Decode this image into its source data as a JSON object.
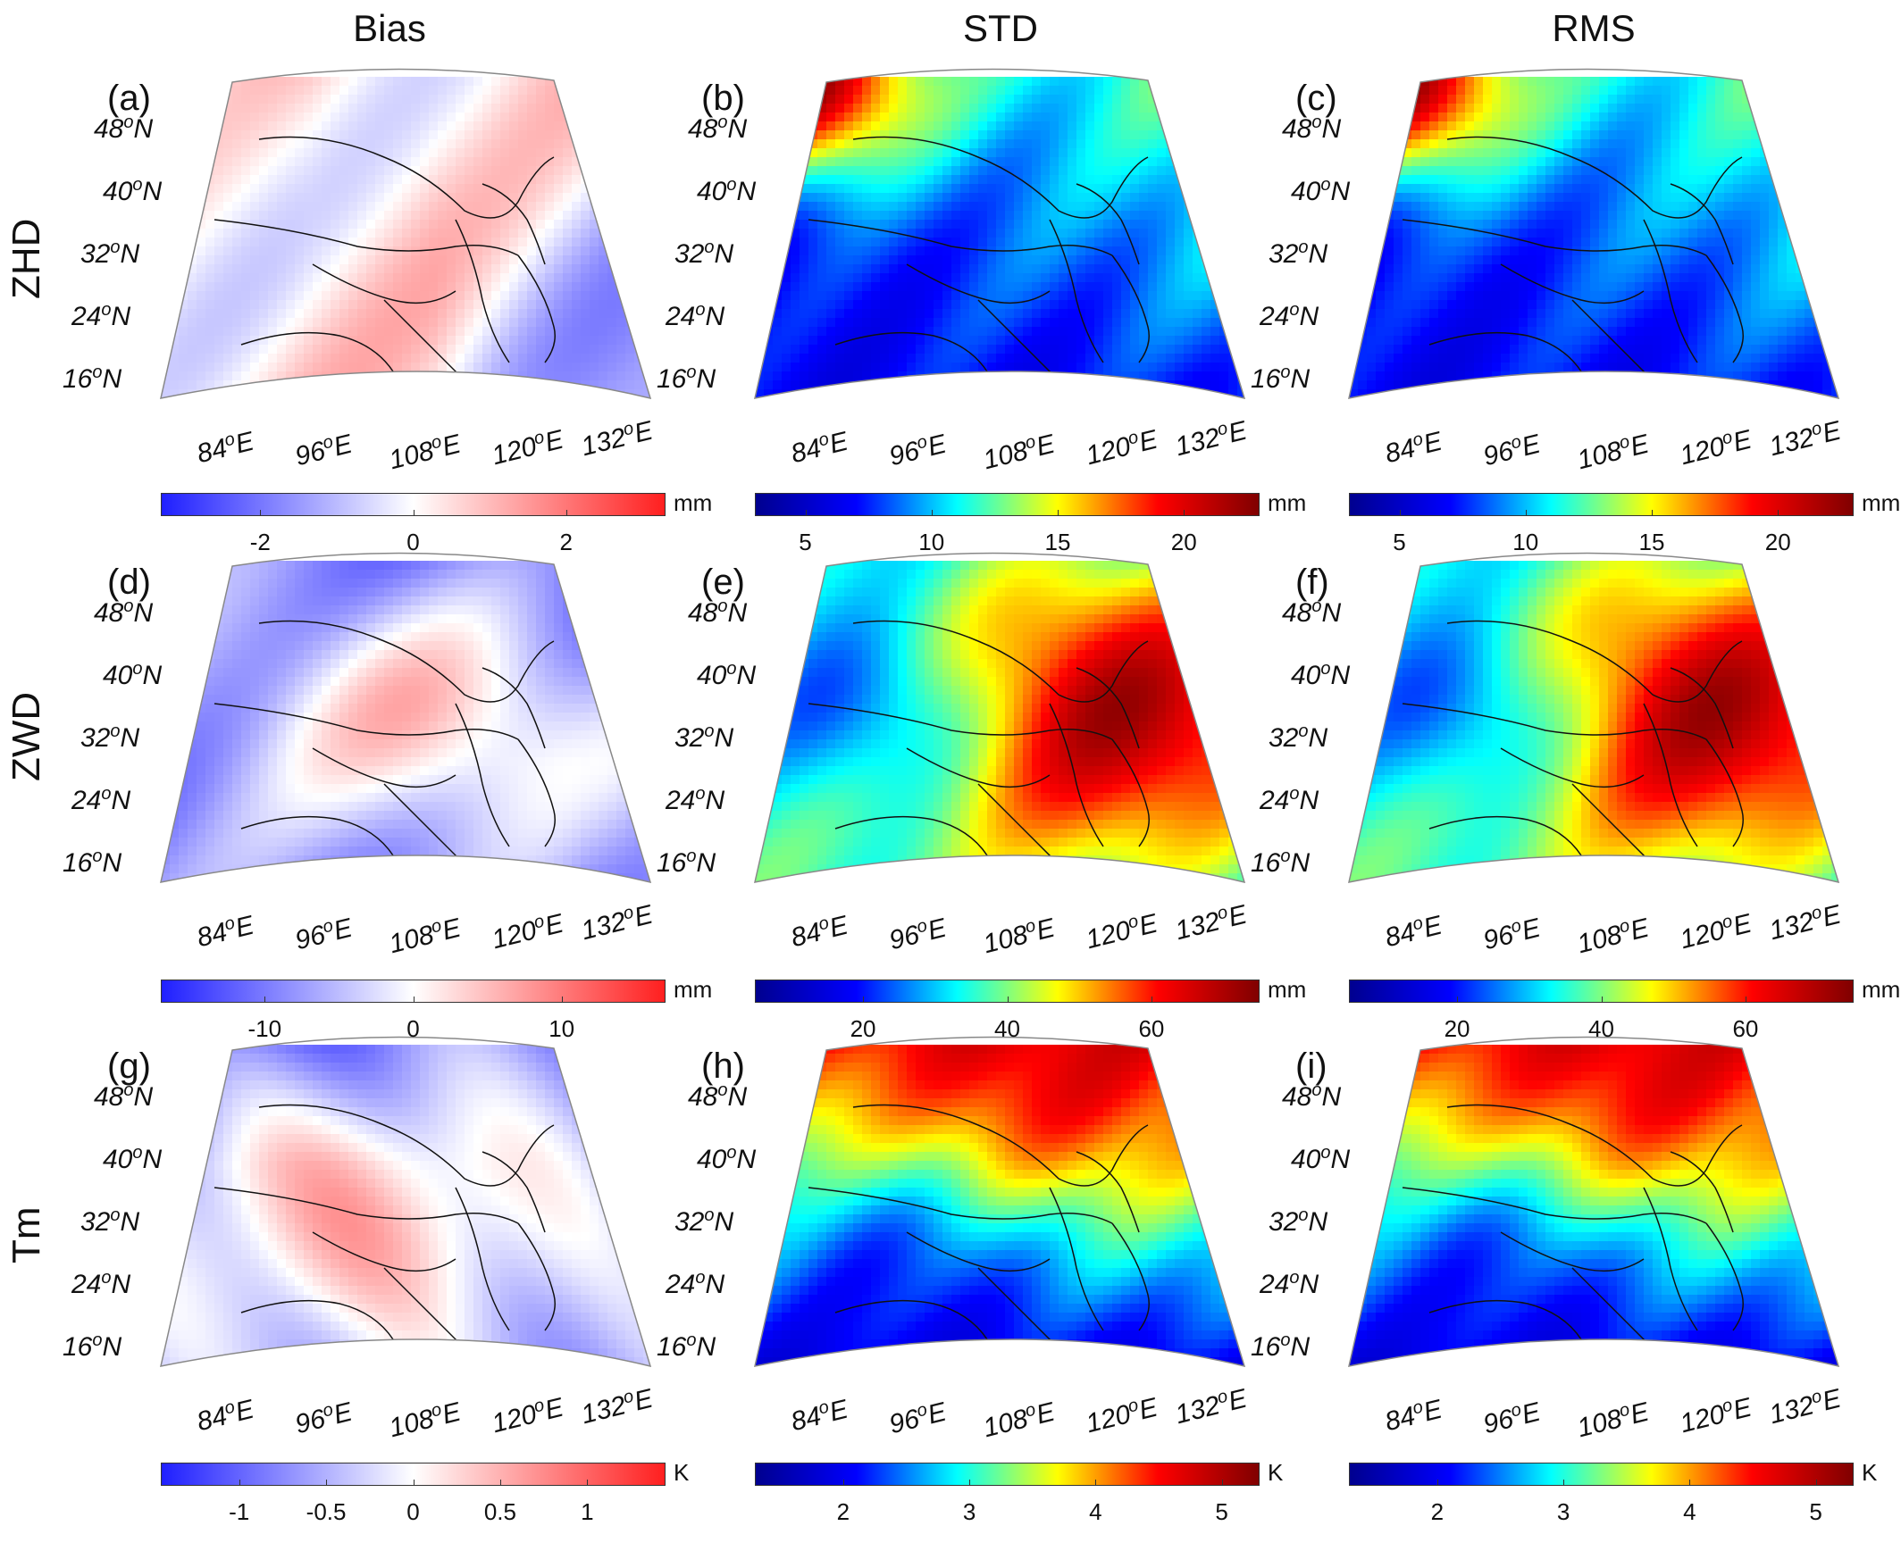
{
  "columns": [
    "Bias",
    "STD",
    "RMS"
  ],
  "rows": [
    "ZHD",
    "ZWD",
    "Tm"
  ],
  "latitude_labels": [
    "48",
    "40",
    "32",
    "24",
    "16"
  ],
  "longitude_labels": [
    "84",
    "96",
    "108",
    "120",
    "132"
  ],
  "lat_suffix": "N",
  "lon_suffix": "E",
  "degree_mark": "o",
  "panels": [
    {
      "label": "(a)",
      "row": "ZHD",
      "column": "Bias",
      "colormap": "diverging",
      "unit": "mm",
      "range": [
        -3.3,
        3.3
      ],
      "ticks": [
        "-2",
        "0",
        "2"
      ],
      "tick_values": [
        -2,
        0,
        2
      ]
    },
    {
      "label": "(b)",
      "row": "ZHD",
      "column": "STD",
      "colormap": "jet",
      "unit": "mm",
      "range": [
        3,
        23
      ],
      "ticks": [
        "5",
        "10",
        "15",
        "20"
      ],
      "tick_values": [
        5,
        10,
        15,
        20
      ]
    },
    {
      "label": "(c)",
      "row": "ZHD",
      "column": "RMS",
      "colormap": "jet",
      "unit": "mm",
      "range": [
        3,
        23
      ],
      "ticks": [
        "5",
        "10",
        "15",
        "20"
      ],
      "tick_values": [
        5,
        10,
        15,
        20
      ]
    },
    {
      "label": "(d)",
      "row": "ZWD",
      "column": "Bias",
      "colormap": "diverging",
      "unit": "mm",
      "range": [
        -17,
        17
      ],
      "ticks": [
        "-10",
        "0",
        "10"
      ],
      "tick_values": [
        -10,
        0,
        10
      ]
    },
    {
      "label": "(e)",
      "row": "ZWD",
      "column": "STD",
      "colormap": "jet",
      "unit": "mm",
      "range": [
        5,
        75
      ],
      "ticks": [
        "20",
        "40",
        "60"
      ],
      "tick_values": [
        20,
        40,
        60
      ]
    },
    {
      "label": "(f)",
      "row": "ZWD",
      "column": "RMS",
      "colormap": "jet",
      "unit": "mm",
      "range": [
        5,
        75
      ],
      "ticks": [
        "20",
        "40",
        "60"
      ],
      "tick_values": [
        20,
        40,
        60
      ]
    },
    {
      "label": "(g)",
      "row": "Tm",
      "column": "Bias",
      "colormap": "diverging",
      "unit": "K",
      "range": [
        -1.45,
        1.45
      ],
      "ticks": [
        "-1",
        "-0.5",
        "0",
        "0.5",
        "1"
      ],
      "tick_values": [
        -1,
        -0.5,
        0,
        0.5,
        1
      ]
    },
    {
      "label": "(h)",
      "row": "Tm",
      "column": "STD",
      "colormap": "jet",
      "unit": "K",
      "range": [
        1.3,
        5.3
      ],
      "ticks": [
        "2",
        "3",
        "4",
        "5"
      ],
      "tick_values": [
        2,
        3,
        4,
        5
      ]
    },
    {
      "label": "(i)",
      "row": "Tm",
      "column": "RMS",
      "colormap": "jet",
      "unit": "K",
      "range": [
        1.3,
        5.3
      ],
      "ticks": [
        "2",
        "3",
        "4",
        "5"
      ],
      "tick_values": [
        2,
        3,
        4,
        5
      ]
    }
  ],
  "colors": {
    "diverging": [
      "#1f1fff",
      "#ffffff",
      "#ff1f1f"
    ],
    "jet": [
      "#00008f",
      "#0000ff",
      "#00ffff",
      "#ffff00",
      "#ff0000",
      "#800000"
    ]
  }
}
